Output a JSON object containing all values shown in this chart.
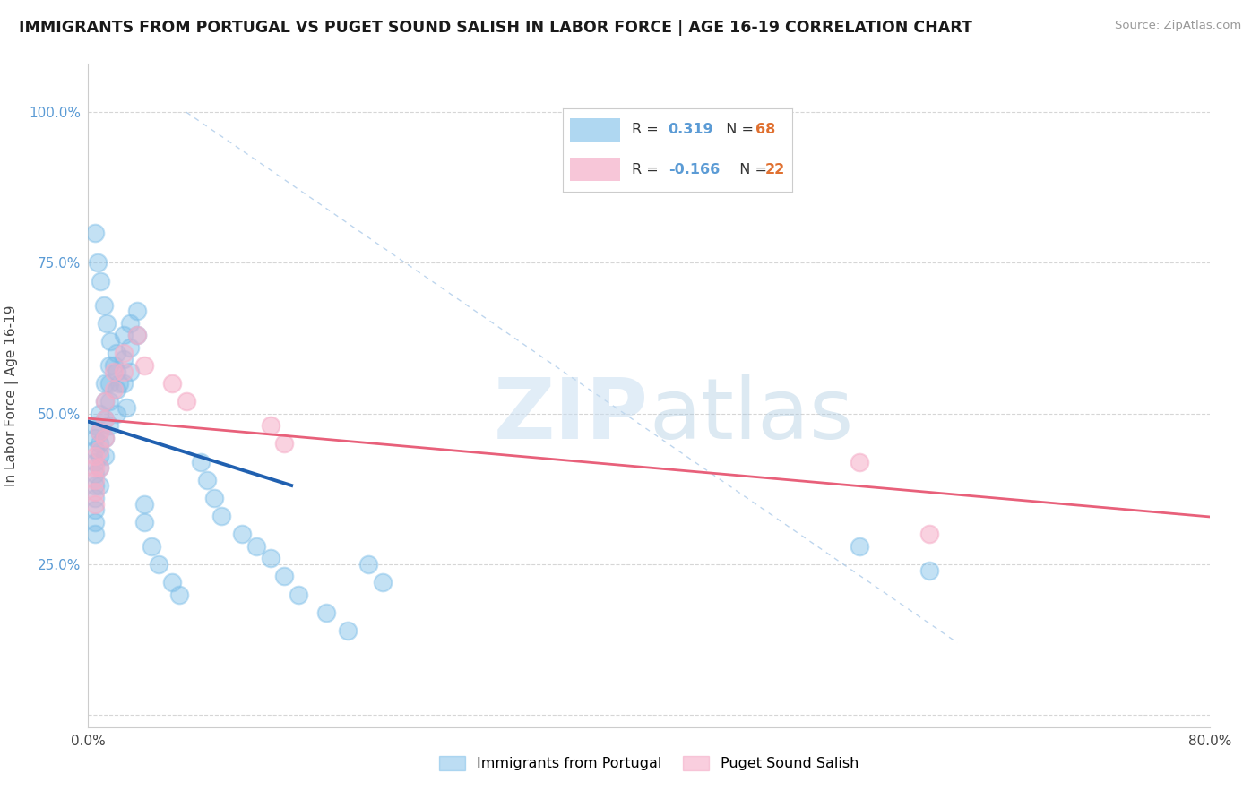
{
  "title": "IMMIGRANTS FROM PORTUGAL VS PUGET SOUND SALISH IN LABOR FORCE | AGE 16-19 CORRELATION CHART",
  "source": "Source: ZipAtlas.com",
  "ylabel": "In Labor Force | Age 16-19",
  "xlim": [
    0.0,
    0.8
  ],
  "ylim": [
    -0.02,
    1.08
  ],
  "xtick_positions": [
    0.0,
    0.1,
    0.2,
    0.3,
    0.4,
    0.5,
    0.6,
    0.7,
    0.8
  ],
  "xticklabels": [
    "0.0%",
    "",
    "",
    "",
    "",
    "",
    "",
    "",
    "80.0%"
  ],
  "ytick_positions": [
    0.0,
    0.25,
    0.5,
    0.75,
    1.0
  ],
  "yticklabels": [
    "",
    "25.0%",
    "50.0%",
    "75.0%",
    "100.0%"
  ],
  "blue_color": "#7bbde8",
  "pink_color": "#f5aec8",
  "blue_line_color": "#2060b0",
  "pink_line_color": "#e8607a",
  "diag_line_color": "#a8c8e8",
  "watermark_zip": "ZIP",
  "watermark_atlas": "atlas",
  "background_color": "#ffffff",
  "grid_color": "#cccccc",
  "blue_x": [
    0.005,
    0.005,
    0.005,
    0.005,
    0.005,
    0.005,
    0.005,
    0.005,
    0.005,
    0.005,
    0.008,
    0.008,
    0.008,
    0.008,
    0.008,
    0.008,
    0.012,
    0.012,
    0.012,
    0.012,
    0.012,
    0.015,
    0.015,
    0.015,
    0.015,
    0.02,
    0.02,
    0.02,
    0.02,
    0.025,
    0.025,
    0.025,
    0.03,
    0.03,
    0.03,
    0.035,
    0.035,
    0.04,
    0.04,
    0.045,
    0.05,
    0.06,
    0.065,
    0.08,
    0.085,
    0.09,
    0.095,
    0.11,
    0.12,
    0.13,
    0.14,
    0.15,
    0.17,
    0.185,
    0.2,
    0.21,
    0.55,
    0.6,
    0.005,
    0.007,
    0.009,
    0.011,
    0.013,
    0.016,
    0.018,
    0.022,
    0.027
  ],
  "blue_y": [
    0.42,
    0.44,
    0.4,
    0.38,
    0.36,
    0.34,
    0.32,
    0.3,
    0.46,
    0.48,
    0.5,
    0.47,
    0.45,
    0.43,
    0.41,
    0.38,
    0.55,
    0.52,
    0.49,
    0.46,
    0.43,
    0.58,
    0.55,
    0.52,
    0.48,
    0.6,
    0.57,
    0.54,
    0.5,
    0.63,
    0.59,
    0.55,
    0.65,
    0.61,
    0.57,
    0.67,
    0.63,
    0.35,
    0.32,
    0.28,
    0.25,
    0.22,
    0.2,
    0.42,
    0.39,
    0.36,
    0.33,
    0.3,
    0.28,
    0.26,
    0.23,
    0.2,
    0.17,
    0.14,
    0.25,
    0.22,
    0.28,
    0.24,
    0.8,
    0.75,
    0.72,
    0.68,
    0.65,
    0.62,
    0.58,
    0.55,
    0.51
  ],
  "pink_x": [
    0.005,
    0.005,
    0.005,
    0.005,
    0.005,
    0.008,
    0.008,
    0.008,
    0.012,
    0.012,
    0.012,
    0.018,
    0.018,
    0.025,
    0.025,
    0.035,
    0.04,
    0.06,
    0.07,
    0.13,
    0.14,
    0.55,
    0.6
  ],
  "pink_y": [
    0.43,
    0.41,
    0.39,
    0.37,
    0.35,
    0.47,
    0.44,
    0.41,
    0.52,
    0.49,
    0.46,
    0.57,
    0.54,
    0.6,
    0.57,
    0.63,
    0.58,
    0.55,
    0.52,
    0.48,
    0.45,
    0.42,
    0.3
  ]
}
